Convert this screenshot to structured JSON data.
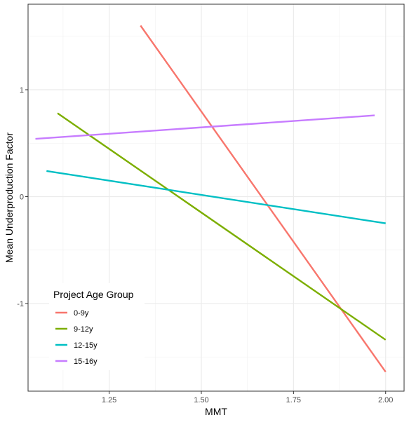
{
  "chart_data": {
    "type": "line",
    "title": "",
    "xlabel": "MMT",
    "ylabel": "Mean Underproduction Factor",
    "xlim": [
      1.03,
      2.05
    ],
    "ylim": [
      -1.82,
      1.8
    ],
    "x_ticks": [
      1.25,
      1.5,
      1.75,
      2.0
    ],
    "x_tick_labels": [
      "1.25",
      "1.50",
      "1.75",
      "2.00"
    ],
    "y_ticks": [
      -1,
      0,
      1
    ],
    "y_tick_labels": [
      "-1",
      "0",
      "1"
    ],
    "grid": true,
    "legend": {
      "title": "Project Age Group",
      "position": "bottom-left"
    },
    "series": [
      {
        "name": "0-9y",
        "color": "#F8766D",
        "x": [
          1.335,
          2.0
        ],
        "y": [
          1.6,
          -1.64
        ]
      },
      {
        "name": "9-12y",
        "color": "#7CAE00",
        "x": [
          1.11,
          2.0
        ],
        "y": [
          0.78,
          -1.34
        ]
      },
      {
        "name": "12-15y",
        "color": "#00BFC4",
        "x": [
          1.08,
          2.0
        ],
        "y": [
          0.24,
          -0.25
        ]
      },
      {
        "name": "15-16y",
        "color": "#C77CFF",
        "x": [
          1.05,
          1.97
        ],
        "y": [
          0.54,
          0.76
        ]
      }
    ]
  }
}
